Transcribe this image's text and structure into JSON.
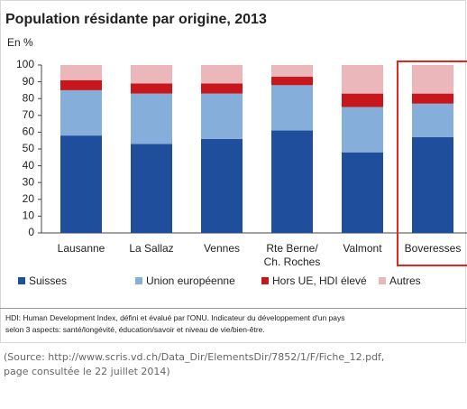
{
  "chart_data": {
    "type": "stacked_bar",
    "title": "Population résidante par origine, 2013",
    "ylabel": "En %",
    "categories": [
      "Lausanne",
      "La Sallaz",
      "Vennes",
      "Rte Berne/ Ch. Roches",
      "Valmont",
      "Boveresses"
    ],
    "series": [
      {
        "name": "Suisses",
        "color": "#1f4e9c",
        "values": [
          58,
          53,
          56,
          61,
          48,
          57
        ]
      },
      {
        "name": "Union européenne",
        "color": "#86aedb",
        "values": [
          27,
          30,
          27,
          27,
          27,
          20
        ]
      },
      {
        "name": "Hors UE, HDI élevé",
        "color": "#c8161d",
        "values": [
          6,
          6,
          6,
          5,
          8,
          6
        ]
      },
      {
        "name": "Autres",
        "color": "#ebb7bb",
        "values": [
          9,
          11,
          11,
          7,
          17,
          17
        ]
      }
    ],
    "ylim": [
      0,
      100
    ],
    "yticks": [
      0,
      10,
      20,
      30,
      40,
      50,
      60,
      70,
      80,
      90,
      100
    ],
    "note": "HDI: Human Development Index, défini et évalué par l'ONU. Indicateur du développement d'un pays",
    "note2": "selon 3 aspects: santé/longévité, éducation/savoir et niveau de vie/bien-être."
  },
  "source": "(Source: http://www.scris.vd.ch/Data_Dir/ElementsDir/7852/1/F/Fiche_12.pdf, page consultée le 22 juillet 2014)"
}
